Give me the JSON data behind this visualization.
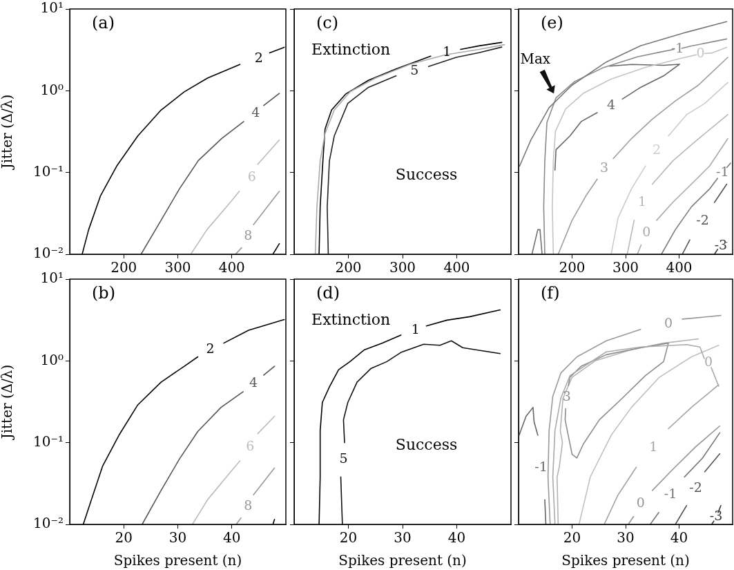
{
  "chart_data": [
    {
      "type": "line",
      "title": "(a)",
      "ylabel": "Jitter (Δ/λ)",
      "log": "y",
      "xlim": [
        100,
        500
      ],
      "ylim": [
        0.01,
        10
      ],
      "xticks": [
        200,
        300,
        400
      ],
      "yticks": [
        {
          "value": 0.01,
          "label": "10⁻²"
        },
        {
          "value": 0.1,
          "label": "10⁻¹"
        },
        {
          "value": 1,
          "label": "10⁰"
        },
        {
          "value": 10,
          "label": "10¹"
        }
      ],
      "marker": "none",
      "series": [
        {
          "name": "2",
          "color": "#000000",
          "x": [
            123,
            135,
            157,
            187,
            226,
            269,
            312,
            355,
            415,
            450,
            470,
            497
          ],
          "values": [
            0.01,
            0.02,
            0.052,
            0.12,
            0.28,
            0.58,
            0.97,
            1.43,
            2.1,
            null,
            2.9,
            3.4
          ]
        },
        {
          "name": "4",
          "color": "#555555",
          "x": [
            232,
            269,
            303,
            338,
            381,
            422,
            444,
            459,
            488
          ],
          "values": [
            0.01,
            0.026,
            0.063,
            0.14,
            0.26,
            0.42,
            null,
            0.66,
            0.93
          ]
        },
        {
          "name": "6",
          "color": "#bbbbbb",
          "x": [
            324,
            354,
            397,
            414,
            437,
            448,
            488
          ],
          "values": [
            0.01,
            0.02,
            0.043,
            0.059,
            null,
            0.126,
            0.25
          ]
        },
        {
          "name": "8",
          "color": "#999999",
          "x": [
            407,
            418,
            430,
            440,
            488
          ],
          "values": [
            0.01,
            0.012,
            null,
            0.023,
            0.059
          ]
        },
        {
          "color": "#000000",
          "x": [
            476,
            488
          ],
          "values": [
            0.01,
            0.0135
          ]
        }
      ]
    },
    {
      "type": "line",
      "title": "(c)",
      "log": "y",
      "tick_labels": "x",
      "xlim": [
        100,
        500
      ],
      "ylim": [
        0.01,
        10
      ],
      "xticks": [
        200,
        300,
        400
      ],
      "yticks": [
        0.01,
        0.1,
        1,
        10
      ],
      "marker": "none",
      "annotations": [
        "Extinction",
        "Success"
      ],
      "series": [
        {
          "color": "#aaaaaa",
          "x": [
            139,
            142,
            148,
            157,
            174,
            203,
            250,
            314,
            378,
            441,
            488
          ],
          "values": [
            0.01,
            0.038,
            0.138,
            0.3,
            0.58,
            0.97,
            1.43,
            2.11,
            2.74,
            3.2,
            3.66
          ]
        },
        {
          "name": "1",
          "color": "#000000",
          "x": [
            146,
            148,
            153,
            157,
            169,
            195,
            237,
            288,
            352,
            382,
            407,
            441,
            483
          ],
          "values": [
            0.01,
            0.038,
            0.138,
            0.34,
            0.58,
            0.91,
            1.34,
            1.85,
            2.65,
            null,
            3.2,
            3.54,
            3.9
          ]
        },
        {
          "name": "5",
          "color": "#222222",
          "x": [
            163,
            161,
            165,
            174,
            199,
            237,
            288,
            322,
            348,
            399,
            441,
            483
          ],
          "values": [
            0.01,
            0.038,
            0.138,
            0.28,
            0.7,
            1.1,
            1.52,
            null,
            1.98,
            2.56,
            2.92,
            3.42
          ]
        }
      ]
    },
    {
      "type": "line",
      "title": "(e)",
      "log": "y",
      "tick_labels": "x",
      "xlim": [
        100,
        500
      ],
      "ylim": [
        0.01,
        10
      ],
      "xticks": [
        200,
        300,
        400
      ],
      "yticks": [
        0.01,
        0.1,
        1,
        10
      ],
      "marker": "none",
      "annotations": [
        {
          "text": "Max",
          "x": 170,
          "y": 0.82
        }
      ],
      "series": [
        {
          "color": "#777777",
          "x": [
            102,
            123,
            157,
            200,
            264,
            328,
            414,
            489
          ],
          "values": [
            0.12,
            0.25,
            0.62,
            1.17,
            2.25,
            3.55,
            5.2,
            7.0
          ]
        },
        {
          "name": "-1",
          "color": "#8a8a8a",
          "x": [
            149,
            147,
            149,
            153,
            170,
            205,
            257,
            322,
            368,
            390,
            397,
            405,
            420,
            489
          ],
          "values": [
            0.01,
            0.038,
            0.138,
            0.41,
            0.82,
            1.3,
            1.9,
            2.6,
            3.0,
            3.2,
            null,
            3.3,
            3.5,
            4.3
          ]
        },
        {
          "name": "0",
          "color": "#c4c4c4",
          "x": [
            165,
            163,
            165,
            169,
            188,
            221,
            272,
            336,
            404,
            432,
            440,
            448,
            462,
            489
          ],
          "values": [
            0.01,
            0.038,
            0.138,
            0.32,
            0.6,
            0.93,
            1.38,
            1.92,
            2.5,
            2.75,
            null,
            2.85,
            2.9,
            3.4
          ]
        },
        {
          "name": "4",
          "color": "#666666",
          "x": [
            168,
            170,
            196,
            217,
            247,
            273,
            294,
            328,
            371,
            401,
            371,
            311,
            270
          ],
          "values": [
            0.107,
            0.19,
            0.28,
            0.42,
            0.54,
            null,
            0.79,
            1.1,
            1.52,
            2.11,
            2.05,
            2.1,
            2.0
          ]
        },
        {
          "name": "3",
          "color": "#9e9e9e",
          "x": [
            174,
            200,
            226,
            247,
            260,
            277,
            311,
            350,
            393,
            436,
            491
          ],
          "values": [
            0.01,
            0.026,
            0.052,
            0.083,
            null,
            0.148,
            0.26,
            0.45,
            0.75,
            1.17,
            2.56
          ]
        },
        {
          "name": "2",
          "color": "#cccccc",
          "x": [
            273,
            286,
            311,
            337,
            358,
            380,
            414,
            448,
            491
          ],
          "values": [
            0.01,
            0.028,
            0.063,
            0.12,
            null,
            0.28,
            0.51,
            0.7,
            1.26
          ]
        },
        {
          "name": "1",
          "color": "#b8b8b8",
          "x": [
            303,
            316,
            331,
            350,
            388,
            427,
            491
          ],
          "values": [
            0.01,
            0.026,
            null,
            0.072,
            0.138,
            0.23,
            0.51
          ]
        },
        {
          "name": "0",
          "color": "#aaaaaa",
          "x": [
            322,
            329,
            339,
            358,
            388,
            423,
            457,
            491
          ],
          "values": [
            0.01,
            0.013,
            null,
            0.026,
            0.043,
            0.072,
            0.12,
            0.26
          ]
        },
        {
          "name": "-1",
          "color": "#7a7a7a",
          "x": [
            367,
            393,
            423,
            457,
            472,
            481,
            489,
            496
          ],
          "values": [
            0.01,
            0.02,
            0.038,
            0.063,
            0.085,
            null,
            0.115,
            0.13
          ]
        },
        {
          "name": "-2",
          "color": "#555555",
          "x": [
            406,
            420,
            444,
            466,
            489
          ],
          "values": [
            0.01,
            0.015,
            null,
            0.043,
            0.072
          ]
        },
        {
          "name": "-3",
          "color": "#333333",
          "x": [
            466,
            472,
            478,
            489
          ],
          "values": [
            0.01,
            0.0115,
            null,
            0.014
          ]
        },
        {
          "color": "#707070",
          "x": [
            125,
            136,
            140,
            144
          ],
          "values": [
            0.01,
            0.02,
            0.02,
            0.01
          ]
        }
      ]
    },
    {
      "type": "line",
      "title": "(b)",
      "xlabel": "Spikes present (n)",
      "ylabel": "Jitter (Δ/λ)",
      "log": "y",
      "xlim": [
        10,
        50
      ],
      "ylim": [
        0.01,
        10
      ],
      "xticks": [
        20,
        30,
        40
      ],
      "yticks": [
        {
          "value": 0.01,
          "label": "10⁻²"
        },
        {
          "value": 0.1,
          "label": "10⁻¹"
        },
        {
          "value": 1,
          "label": "10⁰"
        },
        {
          "value": 10,
          "label": "10¹"
        }
      ],
      "marker": "none",
      "series": [
        {
          "name": "2",
          "color": "#000000",
          "x": [
            12.5,
            14,
            16.1,
            19.1,
            22.6,
            26.9,
            31.2,
            33.7,
            36,
            38.5,
            43.1,
            49.7
          ],
          "values": [
            0.01,
            0.02,
            0.052,
            0.123,
            0.29,
            0.55,
            0.86,
            1.12,
            null,
            1.65,
            2.37,
            3.2
          ]
        },
        {
          "name": "4",
          "color": "#555555",
          "x": [
            23.4,
            26.9,
            30.3,
            33.7,
            38,
            42.1,
            44,
            45.9,
            47.9
          ],
          "values": [
            0.01,
            0.026,
            0.063,
            0.137,
            0.27,
            0.42,
            null,
            0.67,
            0.86
          ]
        },
        {
          "name": "6",
          "color": "#bbbbbb",
          "x": [
            32.7,
            35.5,
            39.4,
            41.5,
            43.4,
            44.8,
            47.9
          ],
          "values": [
            0.01,
            0.02,
            0.041,
            0.06,
            null,
            0.129,
            0.21
          ]
        },
        {
          "name": "8",
          "color": "#999999",
          "x": [
            40.8,
            41.7,
            43,
            44,
            47.9
          ],
          "values": [
            0.01,
            0.012,
            null,
            0.023,
            0.049
          ]
        },
        {
          "color": "#000000",
          "x": [
            47.6,
            47.9
          ],
          "values": [
            0.01,
            0.0115
          ]
        }
      ]
    },
    {
      "type": "line",
      "title": "(d)",
      "xlabel": "Spikes present (n)",
      "log": "y",
      "tick_labels": "x",
      "xlim": [
        10,
        50
      ],
      "ylim": [
        0.01,
        10
      ],
      "xticks": [
        20,
        30,
        40
      ],
      "yticks": [
        0.01,
        0.1,
        1,
        10
      ],
      "marker": "none",
      "annotations": [
        "Extinction",
        "Success"
      ],
      "series": [
        {
          "name": "1",
          "color": "#000000",
          "x": [
            14.6,
            14.8,
            14.8,
            15.2,
            16.5,
            18.2,
            20.3,
            22.9,
            26.3,
            29.7,
            32.4,
            34.4,
            38.2,
            42.4,
            48
          ],
          "values": [
            0.01,
            0.038,
            0.14,
            0.31,
            0.48,
            0.78,
            0.98,
            1.36,
            1.65,
            2.07,
            null,
            2.68,
            3.15,
            3.47,
            4.2
          ]
        },
        {
          "name": "5",
          "color": "#111111",
          "x": [
            18.9,
            18.6,
            19.1,
            19.3,
            19.1,
            19.9,
            21.6,
            24.2,
            27.1,
            29.7,
            33.9,
            36.9,
            39,
            41.1,
            43.7,
            48
          ],
          "values": [
            0.01,
            0.038,
            null,
            0.1,
            0.19,
            0.31,
            0.55,
            0.81,
            0.98,
            1.27,
            1.6,
            1.55,
            1.76,
            1.45,
            1.36,
            1.23
          ]
        }
      ]
    },
    {
      "type": "line",
      "title": "(f)",
      "xlabel": "Spikes present (n)",
      "log": "y",
      "tick_labels": "x",
      "xlim": [
        10,
        50
      ],
      "ylim": [
        0.01,
        10
      ],
      "xticks": [
        20,
        30,
        40
      ],
      "yticks": [
        0.01,
        0.1,
        1,
        10
      ],
      "marker": "none",
      "series": [
        {
          "name": "-1",
          "color": "#666666",
          "x": [
            10.1,
            11.4,
            12.7,
            12.9,
            13.6,
            14.2,
            14.9,
            15.1
          ],
          "values": [
            0.123,
            0.21,
            0.27,
            0.18,
            0.123,
            null,
            0.02,
            0.01
          ]
        },
        {
          "name": "0",
          "color": "#999999",
          "x": [
            15.9,
            15.5,
            15.7,
            16.4,
            17.9,
            20.9,
            26.4,
            32.8,
            38,
            40.6,
            47.8
          ],
          "values": [
            0.01,
            0.038,
            0.14,
            0.37,
            0.71,
            1.12,
            1.76,
            2.43,
            null,
            3.24,
            3.59
          ]
        },
        {
          "name": "0",
          "color": "#aaaaaa",
          "x": [
            16.8,
            16.4,
            16.8,
            17.9,
            19.6,
            26.4,
            32.8,
            41.4,
            43.9,
            44.7,
            45.5,
            46,
            47.4
          ],
          "values": [
            0.01,
            0.038,
            0.14,
            0.35,
            0.66,
            1.29,
            1.48,
            1.58,
            1.48,
            1.07,
            null,
            0.83,
            0.49
          ]
        },
        {
          "name": "3",
          "color": "#8c8c8c",
          "x": [
            20,
            18.7,
            18.8,
            19,
            19.3,
            19.6,
            21.7,
            26.4,
            32.8,
            38,
            37.1,
            33.7,
            29.4,
            25.1,
            22.1,
            20.9,
            20
          ],
          "values": [
            0.072,
            0.19,
            0.26,
            null,
            0.5,
            0.63,
            0.86,
            1.19,
            1.45,
            1.65,
            0.98,
            0.66,
            0.35,
            0.19,
            0.096,
            0.065,
            0.072
          ]
        },
        {
          "color": "#b3b3b3",
          "x": [
            17.4,
            17.2,
            17.6,
            18.2,
            17.8,
            18.3,
            20,
            24.3,
            30.7,
            37.1,
            43.6
          ],
          "values": [
            0.01,
            0.038,
            0.05,
            0.1,
            0.14,
            0.35,
            0.63,
            1.0,
            1.35,
            1.65,
            1.86
          ]
        },
        {
          "color": "#c0c0c0",
          "x": [
            21.3,
            23.4,
            27.3,
            31.1,
            36.3,
            42.3,
            47.4
          ],
          "values": [
            0.01,
            0.038,
            0.123,
            0.27,
            0.63,
            1.12,
            1.55
          ]
        },
        {
          "name": "1",
          "color": "#a3a3a3",
          "x": [
            26,
            28.6,
            32,
            35.2,
            38,
            42.3,
            47.4
          ],
          "values": [
            0.01,
            0.023,
            0.05,
            null,
            0.148,
            0.27,
            0.51
          ]
        },
        {
          "name": "0",
          "color": "#969696",
          "x": [
            30.5,
            31.5,
            32.8,
            35,
            38.8,
            43.1,
            47.6
          ],
          "values": [
            0.01,
            0.0125,
            null,
            0.026,
            0.047,
            0.089,
            0.16
          ]
        },
        {
          "name": "-1",
          "color": "#777777",
          "x": [
            34.6,
            36.2,
            38.4,
            41,
            44.4,
            47.6
          ],
          "values": [
            0.01,
            0.014,
            null,
            0.038,
            0.065,
            0.132
          ]
        },
        {
          "name": "-2",
          "color": "#555555",
          "x": [
            39.3,
            41.4,
            43.1,
            44.8,
            47.6
          ],
          "values": [
            0.01,
            0.017,
            null,
            0.044,
            0.073
          ]
        },
        {
          "name": "-3",
          "color": "#333333",
          "x": [
            46.1,
            46.5,
            46.9,
            47.3,
            47.8
          ],
          "values": [
            0.01,
            0.011,
            null,
            0.014,
            0.017
          ]
        }
      ]
    }
  ]
}
